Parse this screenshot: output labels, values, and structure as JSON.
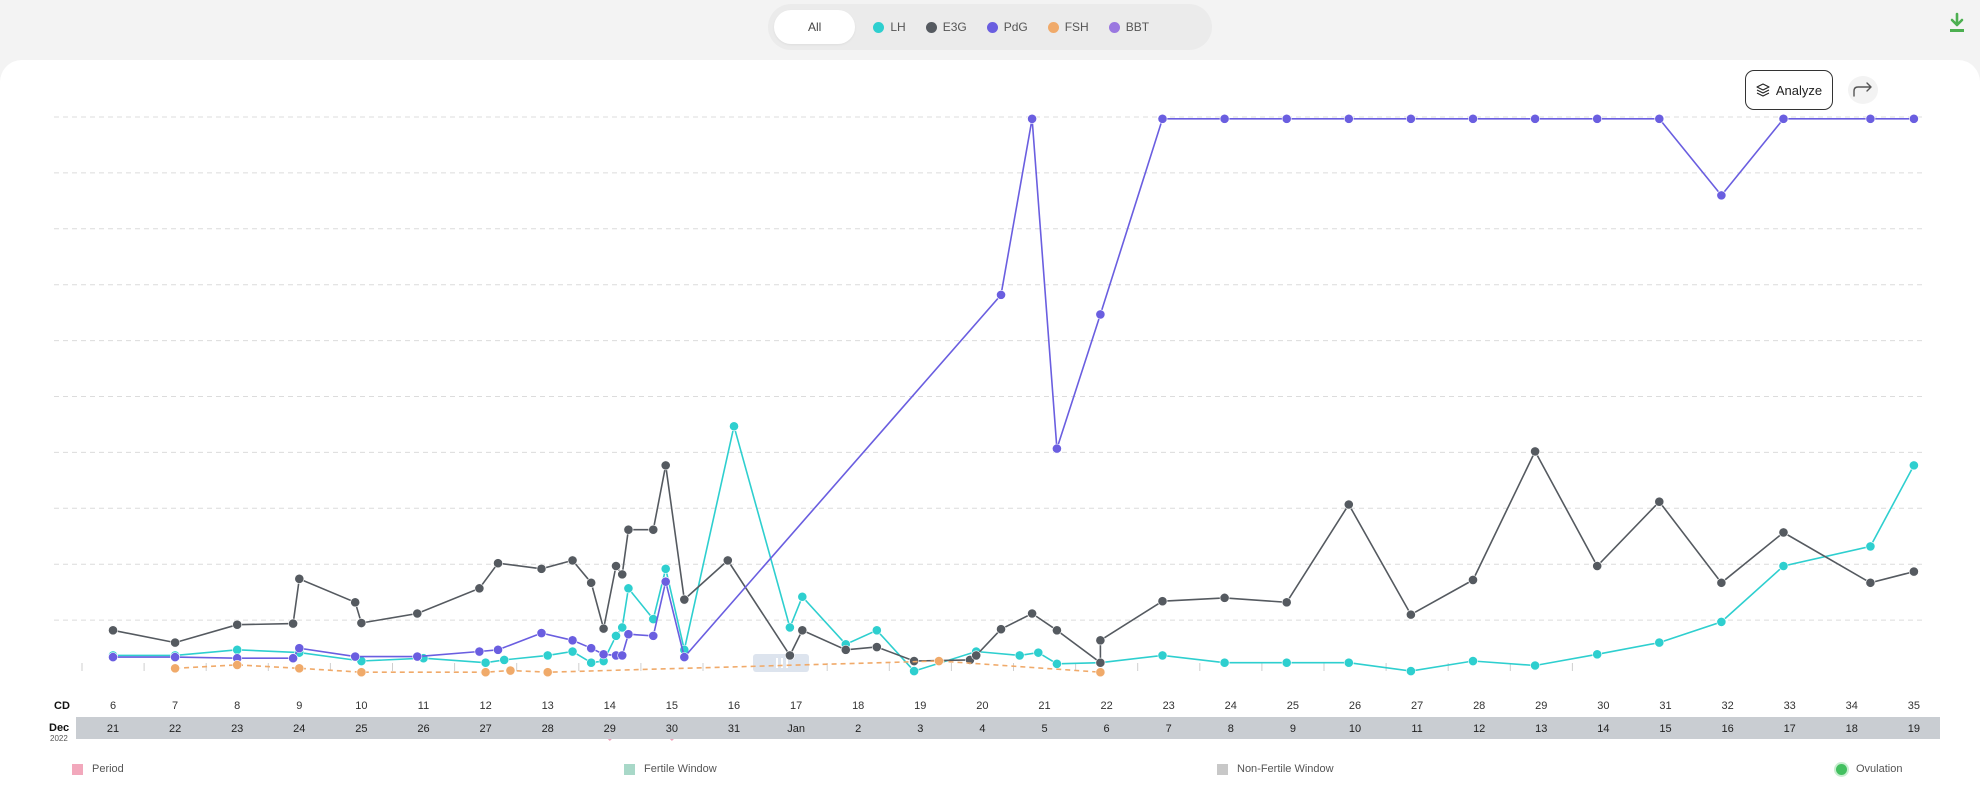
{
  "filters": {
    "all_label": "All",
    "items": [
      {
        "label": "LH",
        "color": "#2ecfcf"
      },
      {
        "label": "E3G",
        "color": "#555a60"
      },
      {
        "label": "PdG",
        "color": "#6a5ee0"
      },
      {
        "label": "FSH",
        "color": "#f0aa6a"
      },
      {
        "label": "BBT",
        "color": "#9a78e0"
      }
    ]
  },
  "toolbar": {
    "analyze_label": "Analyze",
    "download_icon": "download-icon",
    "share_icon": "share-icon"
  },
  "axis": {
    "cd_label": "CD",
    "month_label": "Dec",
    "year_label": "2022",
    "cd_values": [
      "6",
      "7",
      "8",
      "9",
      "10",
      "11",
      "12",
      "13",
      "14",
      "15",
      "16",
      "17",
      "18",
      "19",
      "20",
      "21",
      "22",
      "23",
      "24",
      "25",
      "26",
      "27",
      "28",
      "29",
      "30",
      "31",
      "32",
      "33",
      "34",
      "35"
    ],
    "date_values": [
      "21",
      "22",
      "23",
      "24",
      "25",
      "26",
      "27",
      "28",
      "29",
      "30",
      "31",
      "Jan",
      "2",
      "3",
      "4",
      "5",
      "6",
      "7",
      "8",
      "9",
      "10",
      "11",
      "12",
      "13",
      "14",
      "15",
      "16",
      "17",
      "18",
      "19"
    ]
  },
  "legend": {
    "period": "Period",
    "fertile": "Fertile Window",
    "nonfertile": "Non-Fertile Window",
    "ovulation": "Ovulation"
  },
  "chart_data": {
    "type": "line",
    "x_unit": "cycle day",
    "y_range": [
      0,
      10
    ],
    "grid": true,
    "period_days": [
      14,
      15
    ],
    "series": [
      {
        "name": "LH",
        "color": "#2ecfcf",
        "points": [
          [
            6,
            0.35
          ],
          [
            7,
            0.35
          ],
          [
            8,
            0.45
          ],
          [
            9,
            0.4
          ],
          [
            10,
            0.25
          ],
          [
            11,
            0.3
          ],
          [
            12,
            0.22
          ],
          [
            12.3,
            0.27
          ],
          [
            13,
            0.35
          ],
          [
            13.4,
            0.42
          ],
          [
            13.7,
            0.22
          ],
          [
            13.9,
            0.25
          ],
          [
            14.1,
            0.7
          ],
          [
            14.2,
            0.85
          ],
          [
            14.3,
            1.55
          ],
          [
            14.7,
            1.0
          ],
          [
            14.9,
            1.9
          ],
          [
            15.2,
            0.45
          ],
          [
            16,
            4.45
          ],
          [
            16.9,
            0.85
          ],
          [
            17.1,
            1.4
          ],
          [
            17.8,
            0.55
          ],
          [
            18.3,
            0.8
          ],
          [
            18.9,
            0.07
          ],
          [
            19.9,
            0.42
          ],
          [
            20.6,
            0.35
          ],
          [
            20.9,
            0.4
          ],
          [
            21.2,
            0.2
          ],
          [
            21.9,
            0.22
          ],
          [
            22.9,
            0.35
          ],
          [
            23.9,
            0.22
          ],
          [
            24.9,
            0.22
          ],
          [
            25.9,
            0.22
          ],
          [
            26.9,
            0.07
          ],
          [
            27.9,
            0.25
          ],
          [
            28.9,
            0.17
          ],
          [
            29.9,
            0.37
          ],
          [
            30.9,
            0.58
          ],
          [
            31.9,
            0.95
          ],
          [
            32.9,
            1.95
          ],
          [
            34.3,
            2.3
          ],
          [
            35.0,
            3.75
          ]
        ]
      },
      {
        "name": "E3G",
        "color": "#555a60",
        "points": [
          [
            6,
            0.8
          ],
          [
            7,
            0.58
          ],
          [
            8,
            0.9
          ],
          [
            8.9,
            0.92
          ],
          [
            9.0,
            1.72
          ],
          [
            9.9,
            1.3
          ],
          [
            10,
            0.93
          ],
          [
            10.9,
            1.1
          ],
          [
            11.9,
            1.55
          ],
          [
            12.2,
            2.0
          ],
          [
            12.9,
            1.9
          ],
          [
            13.4,
            2.05
          ],
          [
            13.7,
            1.65
          ],
          [
            13.9,
            0.83
          ],
          [
            14.1,
            1.95
          ],
          [
            14.2,
            1.8
          ],
          [
            14.3,
            2.6
          ],
          [
            14.7,
            2.6
          ],
          [
            14.9,
            3.75
          ],
          [
            15.2,
            1.35
          ],
          [
            15.9,
            2.05
          ],
          [
            16.9,
            0.35
          ],
          [
            17.1,
            0.8
          ],
          [
            17.8,
            0.45
          ],
          [
            18.3,
            0.5
          ],
          [
            18.9,
            0.25
          ],
          [
            19.8,
            0.27
          ],
          [
            19.9,
            0.35
          ],
          [
            20.3,
            0.82
          ],
          [
            20.8,
            1.1
          ],
          [
            21.2,
            0.8
          ],
          [
            21.9,
            0.22
          ],
          [
            21.9,
            0.62
          ],
          [
            22.9,
            1.32
          ],
          [
            23.9,
            1.38
          ],
          [
            24.9,
            1.3
          ],
          [
            25.9,
            3.05
          ],
          [
            26.9,
            1.08
          ],
          [
            27.9,
            1.7
          ],
          [
            28.9,
            4.0
          ],
          [
            29.9,
            1.95
          ],
          [
            30.9,
            3.1
          ],
          [
            31.9,
            1.65
          ],
          [
            32.9,
            2.55
          ],
          [
            34.3,
            1.65
          ],
          [
            35.0,
            1.85
          ]
        ]
      },
      {
        "name": "PdG",
        "color": "#6a5ee0",
        "points": [
          [
            6,
            0.32
          ],
          [
            7,
            0.32
          ],
          [
            8,
            0.3
          ],
          [
            8.9,
            0.3
          ],
          [
            9.0,
            0.48
          ],
          [
            9.9,
            0.33
          ],
          [
            10.9,
            0.33
          ],
          [
            11.9,
            0.42
          ],
          [
            12.2,
            0.45
          ],
          [
            12.9,
            0.75
          ],
          [
            13.4,
            0.62
          ],
          [
            13.7,
            0.48
          ],
          [
            13.9,
            0.37
          ],
          [
            14.1,
            0.35
          ],
          [
            14.2,
            0.35
          ],
          [
            14.3,
            0.73
          ],
          [
            14.7,
            0.7
          ],
          [
            14.9,
            1.67
          ],
          [
            15.2,
            0.32
          ],
          [
            20.3,
            6.8
          ],
          [
            20.8,
            9.95
          ],
          [
            21.2,
            4.05
          ],
          [
            21.9,
            6.45
          ],
          [
            22.9,
            9.95
          ],
          [
            23.9,
            9.95
          ],
          [
            24.9,
            9.95
          ],
          [
            25.9,
            9.95
          ],
          [
            26.9,
            9.95
          ],
          [
            27.9,
            9.95
          ],
          [
            28.9,
            9.95
          ],
          [
            29.9,
            9.95
          ],
          [
            30.9,
            9.95
          ],
          [
            31.9,
            8.58
          ],
          [
            32.9,
            9.95
          ],
          [
            34.3,
            9.95
          ],
          [
            35.0,
            9.95
          ]
        ]
      },
      {
        "name": "FSH",
        "color": "#f0aa6a",
        "points": [
          [
            7,
            0.12
          ],
          [
            8,
            0.18
          ],
          [
            9,
            0.12
          ],
          [
            10,
            0.05
          ],
          [
            12,
            0.05
          ],
          [
            12.4,
            0.08
          ],
          [
            13,
            0.05
          ],
          [
            19.3,
            0.25
          ],
          [
            21.9,
            0.05
          ]
        ]
      }
    ]
  }
}
